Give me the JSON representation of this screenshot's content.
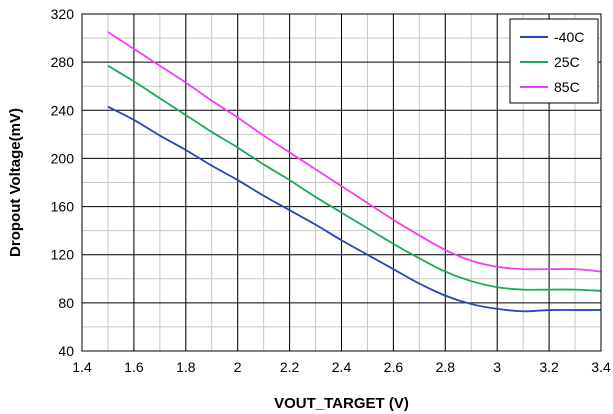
{
  "chart_data": {
    "type": "line",
    "title": "",
    "xlabel": "VOUT_TARGET (V)",
    "ylabel": "Dropout Voltage(mV)",
    "xlim": [
      1.4,
      3.4
    ],
    "ylim": [
      40,
      320
    ],
    "x_ticks": [
      1.4,
      1.6,
      1.8,
      2,
      2.2,
      2.4,
      2.6,
      2.8,
      3,
      3.2,
      3.4
    ],
    "x_tick_labels": [
      "1.4",
      "1.6",
      "1.8",
      "2",
      "2.2",
      "2.4",
      "2.6",
      "2.8",
      "3",
      "3.2",
      "3.4"
    ],
    "x_minor_step": 0.1,
    "y_ticks": [
      40,
      80,
      120,
      160,
      200,
      240,
      280,
      320
    ],
    "y_tick_labels": [
      "40",
      "80",
      "120",
      "160",
      "200",
      "240",
      "280",
      "320"
    ],
    "y_minor_step": 20,
    "grid": true,
    "legend_position": "top-right",
    "series": [
      {
        "name": "-40C",
        "color": "#2846b4",
        "x": [
          1.5,
          1.6,
          1.7,
          1.8,
          1.9,
          2.0,
          2.1,
          2.2,
          2.3,
          2.4,
          2.5,
          2.6,
          2.7,
          2.8,
          2.9,
          3.0,
          3.1,
          3.2,
          3.3,
          3.4
        ],
        "y": [
          243,
          232,
          219,
          207,
          194,
          182,
          169,
          157,
          145,
          132,
          120,
          108,
          96,
          86,
          79,
          75,
          73,
          74,
          74,
          74
        ]
      },
      {
        "name": "25C",
        "color": "#1fa85a",
        "x": [
          1.5,
          1.6,
          1.7,
          1.8,
          1.9,
          2.0,
          2.1,
          2.2,
          2.3,
          2.4,
          2.5,
          2.6,
          2.7,
          2.8,
          2.9,
          3.0,
          3.1,
          3.2,
          3.3,
          3.4
        ],
        "y": [
          277,
          264,
          250,
          236,
          222,
          209,
          195,
          182,
          168,
          155,
          142,
          129,
          117,
          106,
          98,
          93,
          91,
          91,
          91,
          90
        ]
      },
      {
        "name": "85C",
        "color": "#f040f0",
        "x": [
          1.5,
          1.6,
          1.7,
          1.8,
          1.9,
          2.0,
          2.1,
          2.2,
          2.3,
          2.4,
          2.5,
          2.6,
          2.7,
          2.8,
          2.9,
          3.0,
          3.1,
          3.2,
          3.3,
          3.4
        ],
        "y": [
          305,
          291,
          277,
          263,
          248,
          234,
          219,
          205,
          191,
          177,
          163,
          149,
          136,
          124,
          115,
          110,
          108,
          108,
          108,
          106
        ]
      }
    ]
  }
}
